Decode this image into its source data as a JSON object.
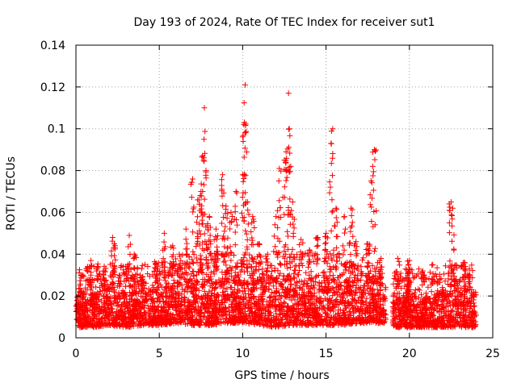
{
  "chart_data": {
    "type": "scatter",
    "title": "Day 193 of 2024, Rate Of TEC Index for receiver sut1",
    "xlabel": "GPS time / hours",
    "ylabel": "ROTI / TECUs",
    "xlim": [
      0,
      25
    ],
    "ylim": [
      0,
      0.14
    ],
    "xticks": [
      "0",
      "5",
      "10",
      "15",
      "20",
      "25"
    ],
    "yticks": [
      "0",
      "0.02",
      "0.04",
      "0.06",
      "0.08",
      "0.1",
      "0.12",
      "0.14"
    ],
    "grid": true,
    "marker": "+",
    "series": [
      {
        "name": "ROTI",
        "color": "#ff0000",
        "baseline": {
          "x": [
            0,
            1,
            2,
            3,
            4,
            5,
            6,
            7,
            8,
            9,
            10,
            11,
            12,
            13,
            14,
            15,
            16,
            17,
            18,
            18.5,
            19.2,
            20,
            21,
            22,
            23,
            24
          ],
          "low": [
            0.005,
            0.005,
            0.006,
            0.005,
            0.006,
            0.006,
            0.007,
            0.006,
            0.006,
            0.007,
            0.007,
            0.006,
            0.005,
            0.006,
            0.006,
            0.006,
            0.006,
            0.007,
            0.007,
            0.007,
            0.005,
            0.005,
            0.005,
            0.005,
            0.005,
            0.005
          ],
          "high": [
            0.02,
            0.022,
            0.024,
            0.022,
            0.022,
            0.024,
            0.026,
            0.028,
            0.028,
            0.028,
            0.028,
            0.028,
            0.03,
            0.028,
            0.028,
            0.028,
            0.028,
            0.026,
            0.024,
            0.02,
            0.02,
            0.02,
            0.02,
            0.022,
            0.022,
            0.022
          ]
        },
        "gap": [
          18.6,
          19.0
        ],
        "peaks": [
          {
            "x": 0.3,
            "y": 0.03
          },
          {
            "x": 0.9,
            "y": 0.037
          },
          {
            "x": 1.3,
            "y": 0.034
          },
          {
            "x": 1.7,
            "y": 0.032
          },
          {
            "x": 2.2,
            "y": 0.048
          },
          {
            "x": 2.3,
            "y": 0.045
          },
          {
            "x": 2.6,
            "y": 0.03
          },
          {
            "x": 3.2,
            "y": 0.049
          },
          {
            "x": 3.5,
            "y": 0.04
          },
          {
            "x": 4.0,
            "y": 0.028
          },
          {
            "x": 4.8,
            "y": 0.035
          },
          {
            "x": 5.3,
            "y": 0.05
          },
          {
            "x": 5.8,
            "y": 0.044
          },
          {
            "x": 6.2,
            "y": 0.04
          },
          {
            "x": 6.6,
            "y": 0.052
          },
          {
            "x": 7.0,
            "y": 0.076
          },
          {
            "x": 7.3,
            "y": 0.066
          },
          {
            "x": 7.5,
            "y": 0.07
          },
          {
            "x": 7.6,
            "y": 0.087
          },
          {
            "x": 7.7,
            "y": 0.11
          },
          {
            "x": 7.8,
            "y": 0.08
          },
          {
            "x": 8.0,
            "y": 0.058
          },
          {
            "x": 8.4,
            "y": 0.052
          },
          {
            "x": 8.8,
            "y": 0.078
          },
          {
            "x": 9.0,
            "y": 0.063
          },
          {
            "x": 9.3,
            "y": 0.06
          },
          {
            "x": 9.6,
            "y": 0.07
          },
          {
            "x": 10.0,
            "y": 0.078
          },
          {
            "x": 10.1,
            "y": 0.103
          },
          {
            "x": 10.15,
            "y": 0.121
          },
          {
            "x": 10.3,
            "y": 0.065
          },
          {
            "x": 10.6,
            "y": 0.058
          },
          {
            "x": 11.0,
            "y": 0.045
          },
          {
            "x": 11.5,
            "y": 0.04
          },
          {
            "x": 12.0,
            "y": 0.058
          },
          {
            "x": 12.2,
            "y": 0.081
          },
          {
            "x": 12.5,
            "y": 0.085
          },
          {
            "x": 12.6,
            "y": 0.089
          },
          {
            "x": 12.75,
            "y": 0.117
          },
          {
            "x": 12.8,
            "y": 0.1
          },
          {
            "x": 13.0,
            "y": 0.065
          },
          {
            "x": 13.5,
            "y": 0.047
          },
          {
            "x": 14.0,
            "y": 0.042
          },
          {
            "x": 14.5,
            "y": 0.048
          },
          {
            "x": 15.0,
            "y": 0.05
          },
          {
            "x": 15.3,
            "y": 0.093
          },
          {
            "x": 15.4,
            "y": 0.1
          },
          {
            "x": 15.6,
            "y": 0.062
          },
          {
            "x": 16.1,
            "y": 0.058
          },
          {
            "x": 16.5,
            "y": 0.062
          },
          {
            "x": 16.8,
            "y": 0.046
          },
          {
            "x": 17.5,
            "y": 0.045
          },
          {
            "x": 17.9,
            "y": 0.09
          },
          {
            "x": 17.8,
            "y": 0.082
          },
          {
            "x": 17.7,
            "y": 0.075
          },
          {
            "x": 18.3,
            "y": 0.038
          },
          {
            "x": 19.3,
            "y": 0.038
          },
          {
            "x": 19.9,
            "y": 0.03
          },
          {
            "x": 20.0,
            "y": 0.037
          },
          {
            "x": 20.8,
            "y": 0.032
          },
          {
            "x": 21.4,
            "y": 0.035
          },
          {
            "x": 22.5,
            "y": 0.065
          },
          {
            "x": 22.6,
            "y": 0.062
          },
          {
            "x": 22.8,
            "y": 0.028
          },
          {
            "x": 23.3,
            "y": 0.036
          },
          {
            "x": 23.6,
            "y": 0.033
          }
        ]
      }
    ]
  }
}
